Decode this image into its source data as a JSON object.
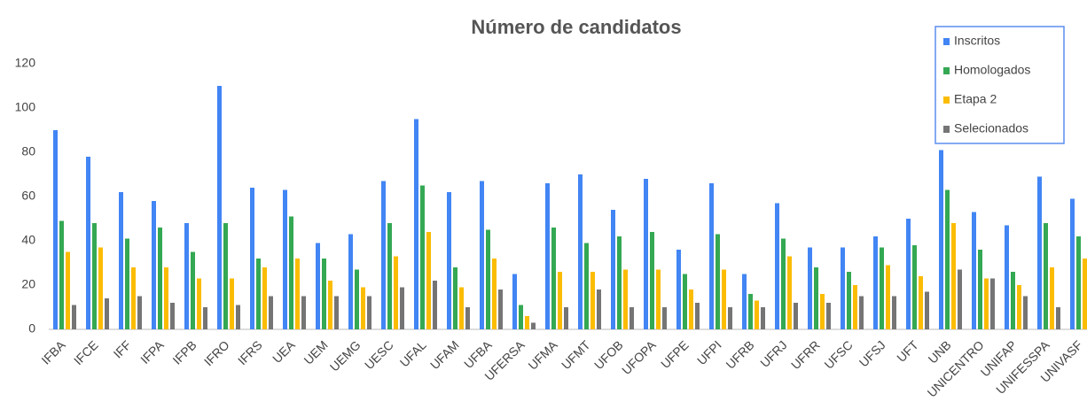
{
  "chart_data": {
    "type": "bar",
    "title": "Número de candidatos",
    "categories": [
      "IFBA",
      "IFCE",
      "IFF",
      "IFPA",
      "IFPB",
      "IFRO",
      "IFRS",
      "UEA",
      "UEM",
      "UEMG",
      "UESC",
      "UFAL",
      "UFAM",
      "UFBA",
      "UFERSA",
      "UFMA",
      "UFMT",
      "UFOB",
      "UFOPA",
      "UFPE",
      "UFPI",
      "UFRB",
      "UFRJ",
      "UFRR",
      "UFSC",
      "UFSJ",
      "UFT",
      "UNB",
      "UNICENTRO",
      "UNIFAP",
      "UNIFESSPA",
      "UNIVASF"
    ],
    "series": [
      {
        "name": "Inscritos",
        "color": "#4285f4",
        "values": [
          90,
          78,
          62,
          58,
          48,
          110,
          64,
          63,
          39,
          43,
          67,
          95,
          62,
          67,
          25,
          66,
          70,
          54,
          68,
          36,
          66,
          25,
          57,
          37,
          37,
          42,
          50,
          81,
          53,
          47,
          69,
          59
        ]
      },
      {
        "name": "Homologados",
        "color": "#34a853",
        "values": [
          49,
          48,
          41,
          46,
          35,
          48,
          32,
          51,
          32,
          27,
          48,
          65,
          28,
          45,
          11,
          46,
          39,
          42,
          44,
          25,
          43,
          16,
          41,
          28,
          26,
          37,
          38,
          63,
          36,
          26,
          48,
          42
        ]
      },
      {
        "name": "Etapa 2",
        "color": "#fbbc04",
        "values": [
          35,
          37,
          28,
          28,
          23,
          23,
          28,
          32,
          22,
          19,
          33,
          44,
          19,
          32,
          6,
          26,
          26,
          27,
          27,
          18,
          27,
          13,
          33,
          16,
          20,
          29,
          24,
          48,
          23,
          20,
          28,
          32
        ]
      },
      {
        "name": "Selecionados",
        "color": "#757575",
        "values": [
          11,
          14,
          15,
          12,
          10,
          11,
          15,
          15,
          15,
          15,
          19,
          22,
          10,
          18,
          3,
          10,
          18,
          10,
          10,
          12,
          10,
          10,
          12,
          12,
          15,
          15,
          17,
          27,
          23,
          15,
          10,
          null
        ]
      }
    ],
    "ylim": [
      0,
      120
    ],
    "yticks": [
      0,
      20,
      40,
      60,
      80,
      100,
      120
    ],
    "grid": false,
    "legend": "top-right"
  }
}
